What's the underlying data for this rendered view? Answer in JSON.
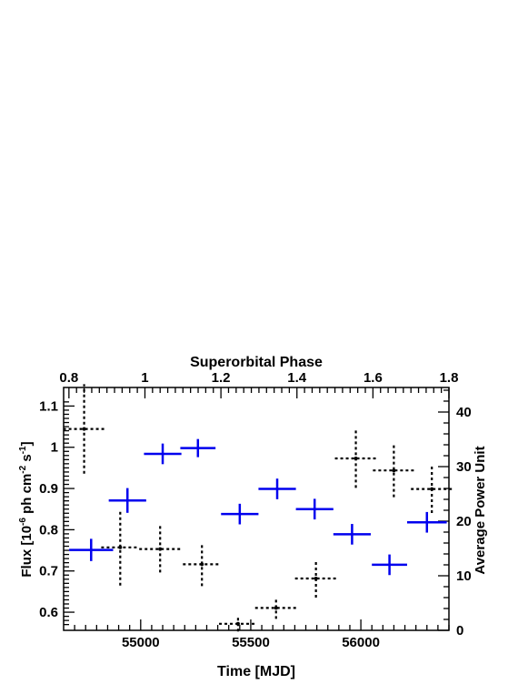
{
  "chart_data": {
    "type": "scatter",
    "title": "",
    "xlabel": "Time [MJD]",
    "ylabel": "Flux [10^-6 ph cm^-2 s^-1]",
    "ylabel_parts": {
      "pre": "Flux [10",
      "exp1": "-6",
      "mid1": " ph cm",
      "exp2": "-2",
      "mid2": " s",
      "exp3": "-1",
      "post": "]"
    },
    "top_xlabel": "Superorbital Phase",
    "right_ylabel": "Average Power Unit",
    "xlim": [
      54650,
      56400
    ],
    "ylim": [
      0.556,
      1.145
    ],
    "top_xlim": [
      0.786,
      1.8
    ],
    "right_ylim": [
      0,
      44.5
    ],
    "x_ticks": [
      "55000",
      "55500",
      "56000"
    ],
    "y_ticks": [
      "0.6",
      "0.7",
      "0.8",
      "0.9",
      "1",
      "1.1"
    ],
    "top_ticks": [
      "0.8",
      "1",
      "1.2",
      "1.4",
      "1.6",
      "1.8"
    ],
    "right_ticks": [
      "0",
      "10",
      "20",
      "30",
      "40"
    ],
    "colors": {
      "flux": "#0000ee",
      "power": "#000000"
    },
    "series": [
      {
        "style": "solid blue error crosses (left axis, bottom axis)",
        "points": [
          {
            "x": 54775,
            "y": 0.751,
            "xerr": 100,
            "yerr": 0.027
          },
          {
            "x": 54940,
            "y": 0.871,
            "xerr": 85,
            "yerr": 0.03
          },
          {
            "x": 55100,
            "y": 0.984,
            "xerr": 85,
            "yerr": 0.025
          },
          {
            "x": 55260,
            "y": 0.998,
            "xerr": 80,
            "yerr": 0.022
          },
          {
            "x": 55450,
            "y": 0.838,
            "xerr": 85,
            "yerr": 0.025
          },
          {
            "x": 55620,
            "y": 0.899,
            "xerr": 85,
            "yerr": 0.025
          },
          {
            "x": 55790,
            "y": 0.85,
            "xerr": 85,
            "yerr": 0.025
          },
          {
            "x": 55960,
            "y": 0.789,
            "xerr": 85,
            "yerr": 0.025
          },
          {
            "x": 56130,
            "y": 0.715,
            "xerr": 80,
            "yerr": 0.025
          },
          {
            "x": 56300,
            "y": 0.818,
            "xerr": 90,
            "yerr": 0.025
          }
        ]
      },
      {
        "style": "dotted black error crosses (right axis, top axis)",
        "points": [
          {
            "phase": 0.84,
            "y": 36.9,
            "xerr": 0.055,
            "yerr": 8.2
          },
          {
            "phase": 0.935,
            "y": 15.2,
            "xerr": 0.05,
            "yerr": 7.0
          },
          {
            "phase": 1.04,
            "y": 14.9,
            "xerr": 0.055,
            "yerr": 4.3
          },
          {
            "phase": 1.15,
            "y": 12.1,
            "xerr": 0.05,
            "yerr": 4.0
          },
          {
            "phase": 1.245,
            "y": 1.2,
            "xerr": 0.05,
            "yerr": 1.4
          },
          {
            "phase": 1.345,
            "y": 4.1,
            "xerr": 0.055,
            "yerr": 2.0
          },
          {
            "phase": 1.45,
            "y": 9.5,
            "xerr": 0.055,
            "yerr": 3.5
          },
          {
            "phase": 1.555,
            "y": 31.5,
            "xerr": 0.055,
            "yerr": 5.4
          },
          {
            "phase": 1.655,
            "y": 29.3,
            "xerr": 0.055,
            "yerr": 4.9
          },
          {
            "phase": 1.755,
            "y": 25.9,
            "xerr": 0.055,
            "yerr": 4.4
          }
        ]
      }
    ]
  }
}
